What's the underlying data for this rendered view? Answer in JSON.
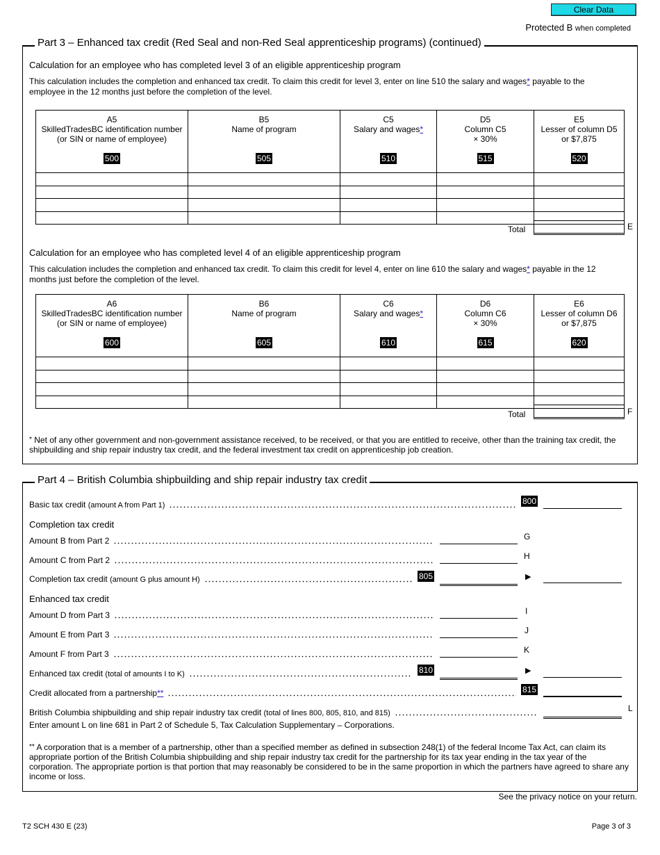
{
  "header": {
    "clear_button": "Clear Data",
    "protected": "Protected B",
    "protected_suffix": "when completed"
  },
  "part3": {
    "title": "Part 3 – Enhanced tax credit (Red Seal and non-Red Seal apprenticeship programs) (continued)",
    "level3": {
      "heading": "Calculation for an employee who has completed level 3 of an eligible apprenticeship program",
      "intro_before": "This calculation includes the completion and enhanced tax credit. To claim this credit for level 3, enter on line 510 the salary and wages",
      "intro_star": "*",
      "intro_after": " payable to the employee in the 12 months just before the completion of the level.",
      "columns": [
        {
          "id": "A5",
          "l1": "SkilledTradesBC identification number",
          "l2": "(or SIN or name of employee)",
          "code": "500"
        },
        {
          "id": "B5",
          "l1": "Name of program",
          "l2": "",
          "code": "505"
        },
        {
          "id": "C5",
          "l1": "Salary and wages",
          "star": "*",
          "l2": "",
          "code": "510"
        },
        {
          "id": "D5",
          "l1": "Column C5",
          "l2": "× 30%",
          "code": "515"
        },
        {
          "id": "E5",
          "l1": "Lesser of column D5",
          "l2": "or $7,875",
          "code": "520"
        }
      ],
      "total_label": "Total",
      "total_letter": "E"
    },
    "level4": {
      "heading": "Calculation for an employee who has completed level 4 of an eligible apprenticeship program",
      "intro_before": "This calculation includes the completion and enhanced tax credit. To claim this credit for level 4, enter on line 610 the salary and wages",
      "intro_star": "*",
      "intro_after": " payable in the 12 months just before the completion of the level.",
      "columns": [
        {
          "id": "A6",
          "l1": "SkilledTradesBC identification number",
          "l2": "(or SIN or name of employee)",
          "code": "600"
        },
        {
          "id": "B6",
          "l1": "Name of program",
          "l2": "",
          "code": "605"
        },
        {
          "id": "C6",
          "l1": "Salary and wages",
          "star": "*",
          "l2": "",
          "code": "610"
        },
        {
          "id": "D6",
          "l1": "Column C6",
          "l2": "× 30%",
          "code": "615"
        },
        {
          "id": "E6",
          "l1": "Lesser of column D6",
          "l2": "or $7,875",
          "code": "620"
        }
      ],
      "total_label": "Total",
      "total_letter": "F"
    },
    "footnote_mark": "*",
    "footnote": "Net of any other government and non-government assistance received, to be received, or that you are entitled to receive, other than the training tax credit, the shipbuilding and ship repair industry tax credit, and the federal investment tax credit on apprenticeship job creation."
  },
  "part4": {
    "title": "Part 4 – British Columbia shipbuilding and ship repair industry tax credit",
    "basic": {
      "label": "Basic tax credit",
      "sub": "(amount A from Part 1)",
      "code": "800"
    },
    "completion_heading": "Completion tax credit",
    "amount_b": {
      "label": "Amount B from Part 2",
      "letter": "G"
    },
    "amount_c": {
      "label": "Amount C from Part 2",
      "letter": "H"
    },
    "completion": {
      "label": "Completion tax credit",
      "sub": "(amount G plus amount H)",
      "code": "805"
    },
    "enhanced_heading": "Enhanced tax credit",
    "amount_d": {
      "label": "Amount D from Part 3",
      "letter": "I"
    },
    "amount_e": {
      "label": "Amount E from Part 3",
      "letter": "J"
    },
    "amount_f": {
      "label": "Amount F from Part 3",
      "letter": "K"
    },
    "enhanced": {
      "label": "Enhanced tax credit",
      "sub": "(total of amounts I to K)",
      "code": "810"
    },
    "partnership": {
      "label": "Credit allocated from a partnership",
      "star": "**",
      "code": "815"
    },
    "total": {
      "label": "British Columbia shipbuilding and ship repair industry tax credit",
      "sub": "(total of lines 800, 805, 810, and 815)",
      "letter": "L"
    },
    "enter_note": "Enter amount L on line 681 in Part 2 of Schedule 5, Tax Calculation Supplementary – Corporations.",
    "arrow": "▶",
    "footnote_mark": "**",
    "footnote": "A corporation that is a member of a partnership, other than a specified member as defined in subsection 248(1) of the federal Income Tax Act, can claim its appropriate portion of the British Columbia shipbuilding and ship repair industry tax credit for the partnership for its tax year ending in the tax year of the corporation. The appropriate portion is that portion that may reasonably be considered to be in the same proportion in which the partners have agreed to share any income or loss."
  },
  "footer": {
    "privacy": "See the privacy notice on your return.",
    "form_id": "T2 SCH 430 E (23)",
    "page": "Page 3 of 3"
  }
}
